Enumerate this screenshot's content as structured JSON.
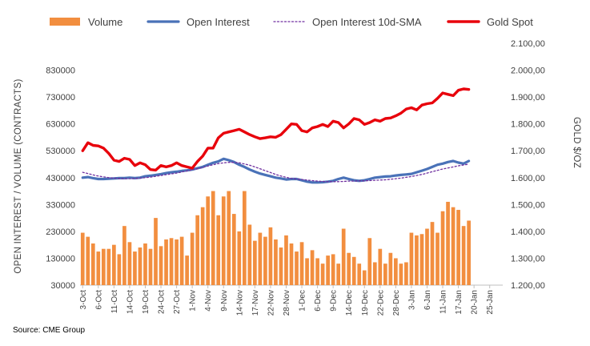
{
  "source_note": "Source: CME Group",
  "colors": {
    "volume": "#F28E3F",
    "open_interest": "#4A72B8",
    "sma": "#7030A0",
    "gold_spot": "#E8000B",
    "text": "#404040"
  },
  "chart_data": {
    "type": "bar+line",
    "legend": [
      "Volume",
      "Open Interest",
      "Open Interest 10d-SMA",
      "Gold Spot"
    ],
    "legend_position": "top",
    "ylabel_left": "OPEN INTEREST / VOLUME (CONTRACTS)",
    "ylabel_right": "GOLD $/OZ",
    "yticks_left": [
      "830000",
      "730000",
      "630000",
      "530000",
      "430000",
      "330000",
      "230000",
      "130000",
      "30000"
    ],
    "yticks_right": [
      "2.100,00",
      "2.000,00",
      "1.900,00",
      "1.800,00",
      "1.700,00",
      "1.600,00",
      "1.500,00",
      "1.400,00",
      "1.300,00",
      "1.200,00"
    ],
    "ylim_left": [
      30000,
      930000
    ],
    "ylim_right": [
      1200,
      2100
    ],
    "x_tick_labels": [
      "3-Oct",
      "6-Oct",
      "11-Oct",
      "14-Oct",
      "19-Oct",
      "24-Oct",
      "27-Oct",
      "1-Nov",
      "4-Nov",
      "9-Nov",
      "14-Nov",
      "17-Nov",
      "22-Nov",
      "28-Nov",
      "1-Dec",
      "6-Dec",
      "9-Dec",
      "14-Dec",
      "19-Dec",
      "22-Dec",
      "28-Dec",
      "3-Jan",
      "6-Jan",
      "11-Jan",
      "17-Jan",
      "20-Jan",
      "25-Jan"
    ],
    "x_tick_positions": [
      0,
      3,
      6,
      9,
      12,
      15,
      18,
      21,
      24,
      27,
      30,
      33,
      36,
      39,
      42,
      45,
      48,
      51,
      54,
      57,
      60,
      63,
      66,
      69,
      72,
      75,
      78
    ],
    "n_slots": 81,
    "series": [
      {
        "name": "Volume",
        "kind": "bar",
        "axis": "left",
        "values": [
          225000,
          210000,
          185000,
          155000,
          165000,
          165000,
          180000,
          145000,
          250000,
          190000,
          155000,
          170000,
          185000,
          165000,
          280000,
          175000,
          200000,
          205000,
          200000,
          210000,
          140000,
          225000,
          290000,
          320000,
          360000,
          380000,
          290000,
          360000,
          380000,
          295000,
          230000,
          380000,
          255000,
          195000,
          225000,
          210000,
          245000,
          200000,
          170000,
          215000,
          185000,
          155000,
          190000,
          130000,
          160000,
          130000,
          110000,
          140000,
          145000,
          110000,
          240000,
          150000,
          135000,
          110000,
          85000,
          205000,
          115000,
          165000,
          110000,
          150000,
          130000,
          110000,
          115000,
          225000,
          215000,
          220000,
          240000,
          265000,
          225000,
          305000,
          340000,
          320000,
          310000,
          250000,
          270000
        ]
      },
      {
        "name": "Open Interest",
        "kind": "line",
        "axis": "left",
        "values": [
          430000,
          432000,
          428000,
          425000,
          425000,
          426000,
          427000,
          428000,
          428000,
          430000,
          428000,
          430000,
          435000,
          437000,
          440000,
          443000,
          447000,
          450000,
          452000,
          455000,
          457000,
          460000,
          465000,
          470000,
          478000,
          485000,
          490000,
          500000,
          495000,
          488000,
          478000,
          470000,
          460000,
          452000,
          445000,
          440000,
          435000,
          430000,
          427000,
          423000,
          425000,
          425000,
          420000,
          415000,
          412000,
          412000,
          413000,
          415000,
          418000,
          425000,
          430000,
          425000,
          420000,
          418000,
          420000,
          425000,
          430000,
          432000,
          434000,
          435000,
          438000,
          440000,
          442000,
          444000,
          450000,
          456000,
          462000,
          470000,
          478000,
          482000,
          488000,
          492000,
          486000,
          482000,
          492000
        ]
      },
      {
        "name": "Open Interest 10d-SMA",
        "kind": "line",
        "dashed": true,
        "axis": "left",
        "values": [
          450000,
          445000,
          440000,
          436000,
          433000,
          430000,
          428000,
          427000,
          426000,
          426000,
          427000,
          428000,
          430000,
          432000,
          435000,
          438000,
          441000,
          444000,
          447000,
          451000,
          455000,
          459000,
          463000,
          468000,
          473000,
          478000,
          482000,
          485000,
          487000,
          487000,
          485000,
          481000,
          476000,
          470000,
          463000,
          456000,
          449000,
          442000,
          436000,
          431000,
          427000,
          425000,
          423000,
          421000,
          419000,
          417000,
          416000,
          415000,
          415000,
          415000,
          416000,
          417000,
          417000,
          418000,
          418000,
          419000,
          420000,
          421000,
          422000,
          424000,
          426000,
          428000,
          431000,
          434000,
          438000,
          442000,
          447000,
          452000,
          457000,
          462000,
          466000,
          470000,
          474000,
          477000,
          480000
        ]
      },
      {
        "name": "Gold Spot",
        "kind": "line",
        "axis": "right",
        "values": [
          1700,
          1730,
          1720,
          1718,
          1710,
          1690,
          1665,
          1660,
          1672,
          1668,
          1645,
          1655,
          1648,
          1630,
          1628,
          1645,
          1640,
          1645,
          1655,
          1645,
          1640,
          1635,
          1660,
          1680,
          1710,
          1710,
          1748,
          1765,
          1770,
          1775,
          1780,
          1770,
          1760,
          1752,
          1745,
          1748,
          1752,
          1750,
          1760,
          1780,
          1800,
          1798,
          1775,
          1770,
          1785,
          1790,
          1798,
          1790,
          1810,
          1805,
          1785,
          1800,
          1820,
          1815,
          1798,
          1805,
          1815,
          1810,
          1820,
          1822,
          1830,
          1840,
          1855,
          1860,
          1852,
          1870,
          1875,
          1878,
          1895,
          1915,
          1910,
          1905,
          1925,
          1930,
          1928
        ]
      }
    ]
  }
}
